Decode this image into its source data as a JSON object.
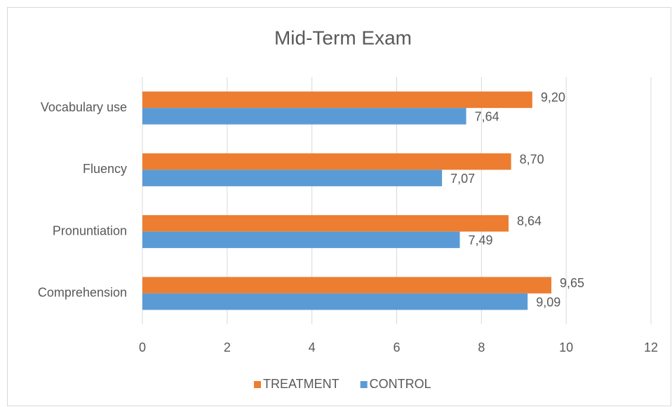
{
  "chart_data": {
    "type": "hbar",
    "title": "Mid-Term Exam",
    "categories": [
      "Vocabulary use",
      "Fluency",
      "Pronuntiation",
      "Comprehension"
    ],
    "series": [
      {
        "name": "TREATMENT",
        "color": "#ed7d31",
        "values": [
          9.2,
          8.7,
          8.64,
          9.65
        ],
        "value_labels": [
          "9,20",
          "8,70",
          "8,64",
          "9,65"
        ]
      },
      {
        "name": "CONTROL",
        "color": "#5b9bd5",
        "values": [
          7.64,
          7.07,
          7.49,
          9.09
        ],
        "value_labels": [
          "7,64",
          "7,07",
          "7,49",
          "9,09"
        ]
      }
    ],
    "xlim": [
      0,
      12
    ],
    "xticks": [
      0,
      2,
      4,
      6,
      8,
      10,
      12
    ],
    "grid": true,
    "legend": "bottom"
  }
}
